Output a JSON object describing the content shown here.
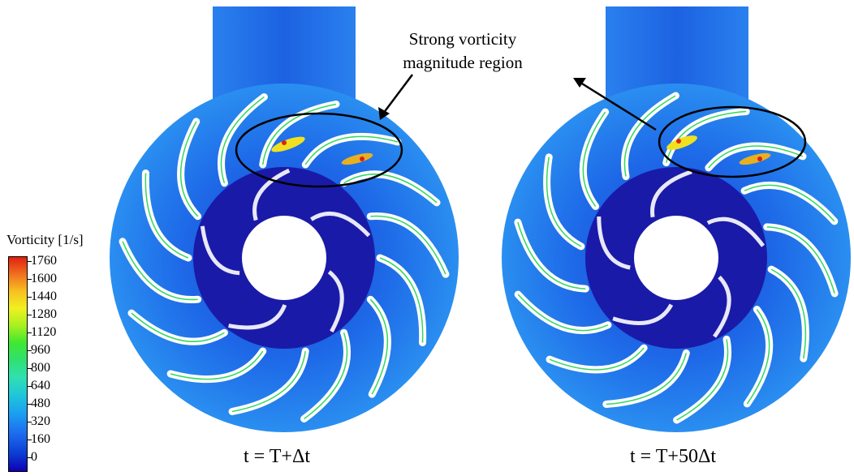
{
  "legend": {
    "title": "Vorticity [1/s]",
    "ticks": [
      "1760",
      "1600",
      "1440",
      "1280",
      "1120",
      "960",
      "800",
      "640",
      "480",
      "320",
      "160",
      "0"
    ]
  },
  "annotation": {
    "line1": "Strong vorticity",
    "line2": "magnitude region"
  },
  "panels": [
    {
      "time_label": "t = T+Δt"
    },
    {
      "time_label": "t = T+50Δt"
    }
  ],
  "colors": {
    "background_flow": "#1e5fe0",
    "hub": "#ffffff",
    "blade": "#ffffff",
    "inner_ring": "#1414a8"
  }
}
